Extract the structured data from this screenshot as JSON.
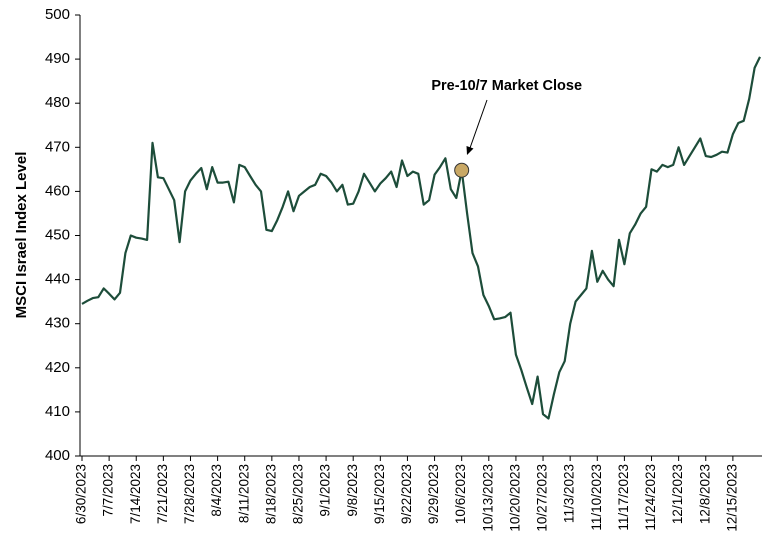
{
  "chart_data": {
    "type": "line",
    "y_label": "MSCI Israel Index Level",
    "ylim": [
      400,
      500
    ],
    "yticks": [
      400,
      410,
      420,
      430,
      440,
      450,
      460,
      470,
      480,
      490,
      500
    ],
    "grid": false,
    "categories": [
      "6/30/2023",
      null,
      null,
      null,
      null,
      "7/7/2023",
      null,
      null,
      null,
      null,
      "7/14/2023",
      null,
      null,
      null,
      null,
      "7/21/2023",
      null,
      null,
      null,
      null,
      "7/28/2023",
      null,
      null,
      null,
      null,
      "8/4/2023",
      null,
      null,
      null,
      null,
      "8/11/2023",
      null,
      null,
      null,
      null,
      "8/18/2023",
      null,
      null,
      null,
      null,
      "8/25/2023",
      null,
      null,
      null,
      null,
      "9/1/2023",
      null,
      null,
      null,
      null,
      "9/8/2023",
      null,
      null,
      null,
      null,
      "9/15/2023",
      null,
      null,
      null,
      null,
      "9/22/2023",
      null,
      null,
      null,
      null,
      "9/29/2023",
      null,
      null,
      null,
      null,
      "10/6/2023",
      null,
      null,
      null,
      null,
      "10/13/2023",
      null,
      null,
      null,
      null,
      "10/20/2023",
      null,
      null,
      null,
      null,
      "10/27/2023",
      null,
      null,
      null,
      null,
      "11/3/2023",
      null,
      null,
      null,
      null,
      "11/10/2023",
      null,
      null,
      null,
      null,
      "11/17/2023",
      null,
      null,
      null,
      null,
      "11/24/2023",
      null,
      null,
      null,
      null,
      "12/1/2023",
      null,
      null,
      null,
      null,
      "12/8/2023",
      null,
      null,
      null,
      null,
      "12/15/2023",
      null,
      null,
      null,
      null,
      null
    ],
    "series": [
      {
        "name": "MSCI Israel",
        "color": "#1d4d3a",
        "values": [
          434.5,
          435.2,
          435.8,
          436,
          438,
          436.8,
          435.5,
          437,
          446,
          450,
          449.5,
          449.3,
          449,
          471,
          463.2,
          463,
          460.5,
          458,
          448.5,
          460,
          462.5,
          464,
          465.3,
          460.5,
          465.5,
          462,
          462,
          462.2,
          457.5,
          466,
          465.5,
          463.5,
          461.5,
          460,
          451.3,
          451,
          453.5,
          456.5,
          460,
          455.5,
          459,
          460,
          461,
          461.5,
          464,
          463.5,
          462,
          460,
          461.5,
          457,
          457.2,
          460,
          464,
          462,
          460,
          461.8,
          463,
          464.5,
          461,
          467,
          463.5,
          464.5,
          464,
          457,
          458,
          463.8,
          465.5,
          467.5,
          460.5,
          458.5,
          464.8,
          455,
          446,
          443,
          436.5,
          434,
          431,
          431.2,
          431.5,
          432.5,
          423,
          419.5,
          415.5,
          411.8,
          418,
          409.5,
          408.5,
          414,
          419,
          421.5,
          430,
          435,
          436.5,
          438,
          446.5,
          439.5,
          442,
          440,
          438.5,
          449,
          443.5,
          450.5,
          452.5,
          455,
          456.5,
          465,
          464.5,
          466,
          465.5,
          466,
          470,
          466,
          468,
          470,
          472,
          468,
          467.8,
          468.3,
          469,
          468.8,
          473,
          475.5,
          476,
          481,
          488,
          490.5
        ]
      }
    ],
    "annotations": [
      {
        "text": "Pre-10/7 Market Close",
        "x": "10/6/2023",
        "y": 464.8,
        "color": "#c9a865"
      }
    ]
  }
}
